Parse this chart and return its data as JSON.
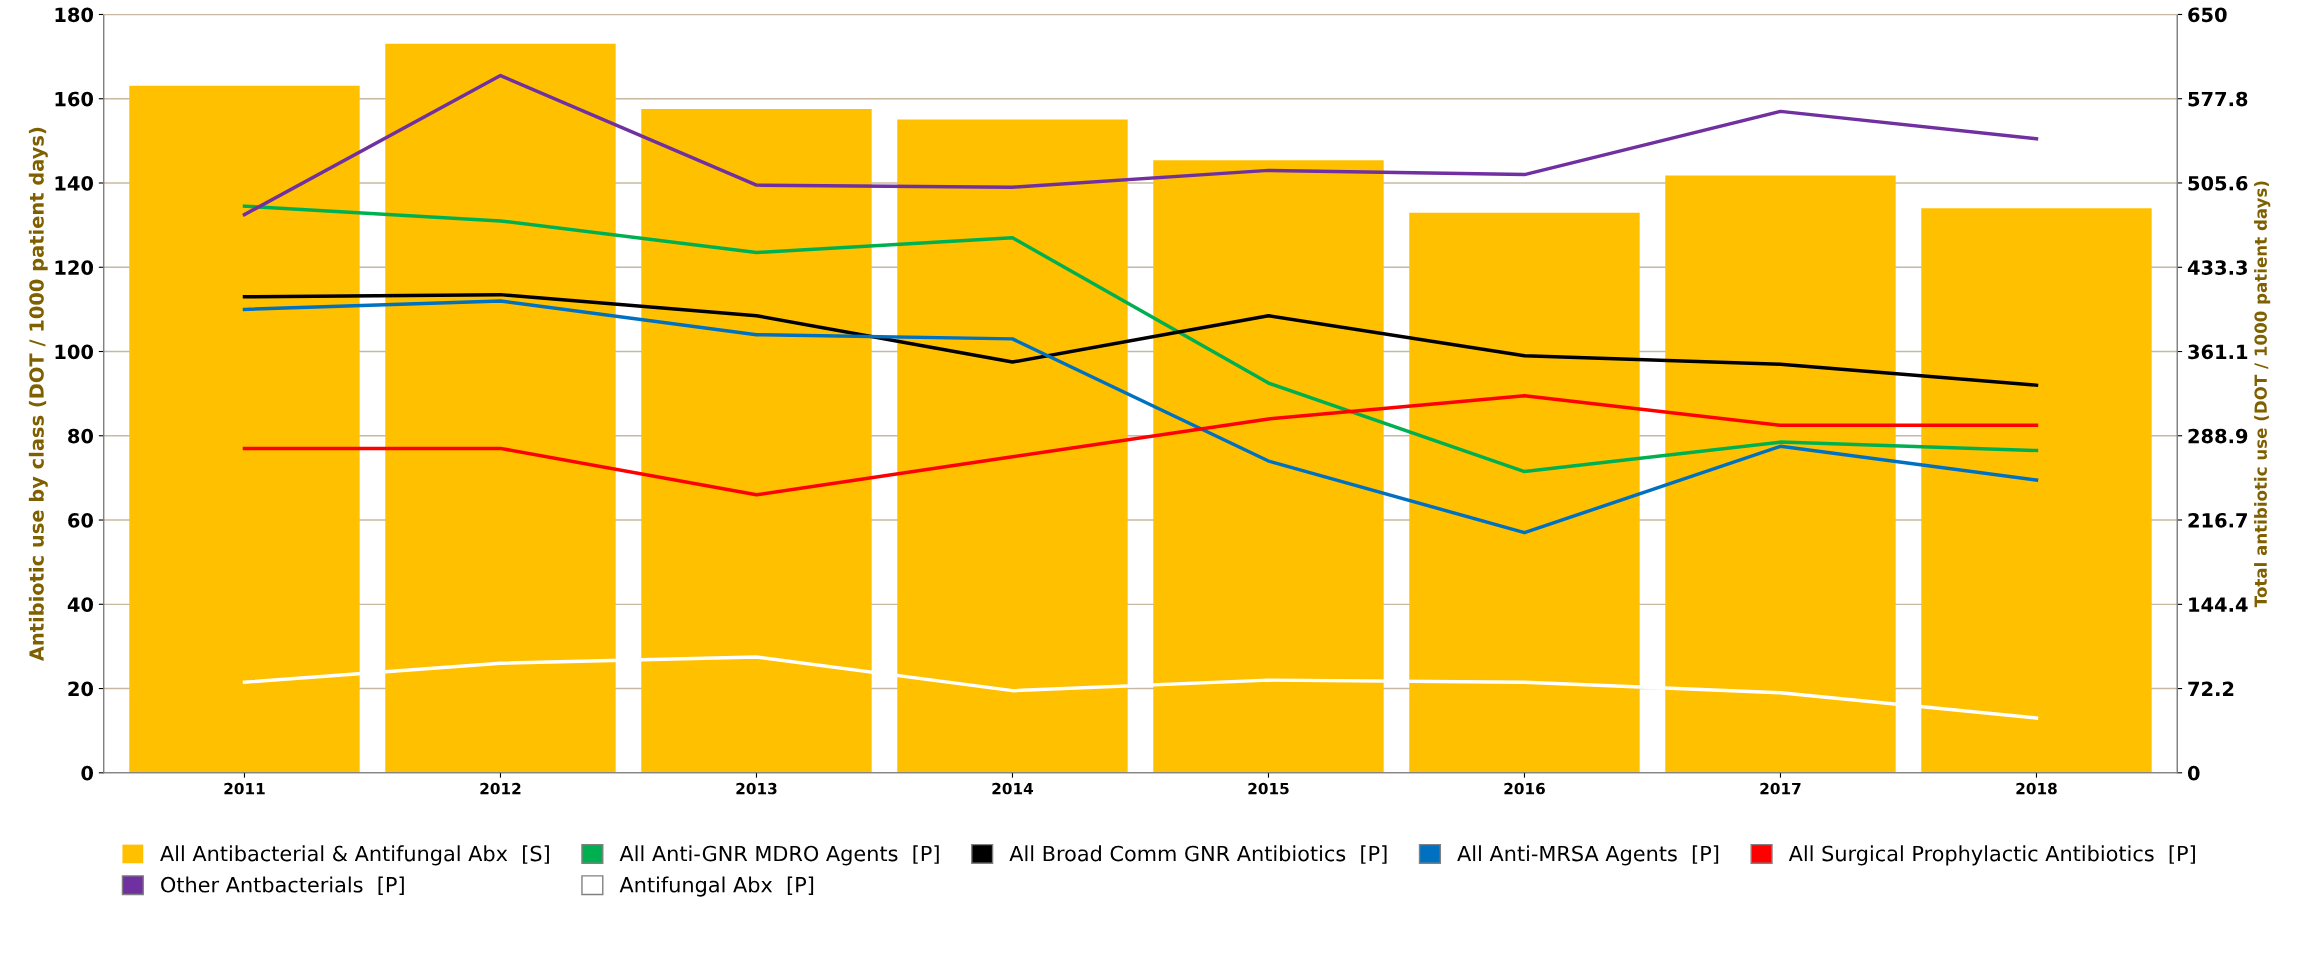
{
  "chart_data": {
    "type": "line",
    "categories": [
      "2011",
      "2012",
      "2013",
      "2014",
      "2015",
      "2016",
      "2017",
      "2018"
    ],
    "ylabel": "Antibiotic use by class (DOT / 1000 patient days)",
    "y2label": "Total antibiotic use (DOT / 1000 patient days)",
    "ylim": [
      0,
      180
    ],
    "yticks": [
      0,
      20,
      40,
      60,
      80,
      100,
      120,
      140,
      160,
      180
    ],
    "y2lim": [
      0,
      650
    ],
    "y2ticks": [
      0,
      72.2,
      144.4,
      216.7,
      288.9,
      361.1,
      433.3,
      505.6,
      577.8,
      650
    ],
    "grid": "y",
    "legend": "bottom",
    "series": [
      {
        "name": "All Antibacterial & Antifungal Abx  [S]",
        "type": "bar",
        "axis": "y2",
        "color": "#ffc000",
        "values": [
          589,
          625,
          569,
          560,
          525,
          480,
          512,
          484
        ]
      },
      {
        "name": "All Anti-GNR MDRO Agents  [P]",
        "color": "#00b050",
        "values": [
          134.5,
          131,
          123.5,
          127,
          92.5,
          71.5,
          78.5,
          76.5
        ]
      },
      {
        "name": "All Broad Comm GNR Antibiotics  [P]",
        "color": "#000000",
        "values": [
          113,
          113.5,
          108.5,
          97.5,
          108.5,
          99,
          97,
          92
        ]
      },
      {
        "name": "All Anti-MRSA Agents  [P]",
        "color": "#0070c0",
        "values": [
          110,
          112,
          104,
          103,
          74,
          57,
          77.5,
          69.5
        ]
      },
      {
        "name": "All Surgical Prophylactic Antibiotics  [P]",
        "color": "#ff0000",
        "values": [
          77,
          77,
          66,
          75,
          84,
          89.5,
          82.5,
          82.5
        ]
      },
      {
        "name": "Other Antbacterials  [P]",
        "color": "#7030a0",
        "values": [
          132.5,
          165.5,
          139.5,
          139,
          143,
          142,
          157,
          150.5
        ]
      },
      {
        "name": "Antifungal Abx  [P]",
        "color": "#ffffff",
        "values": [
          21.5,
          26,
          27.5,
          19.5,
          22,
          21.5,
          19,
          13
        ]
      }
    ]
  }
}
